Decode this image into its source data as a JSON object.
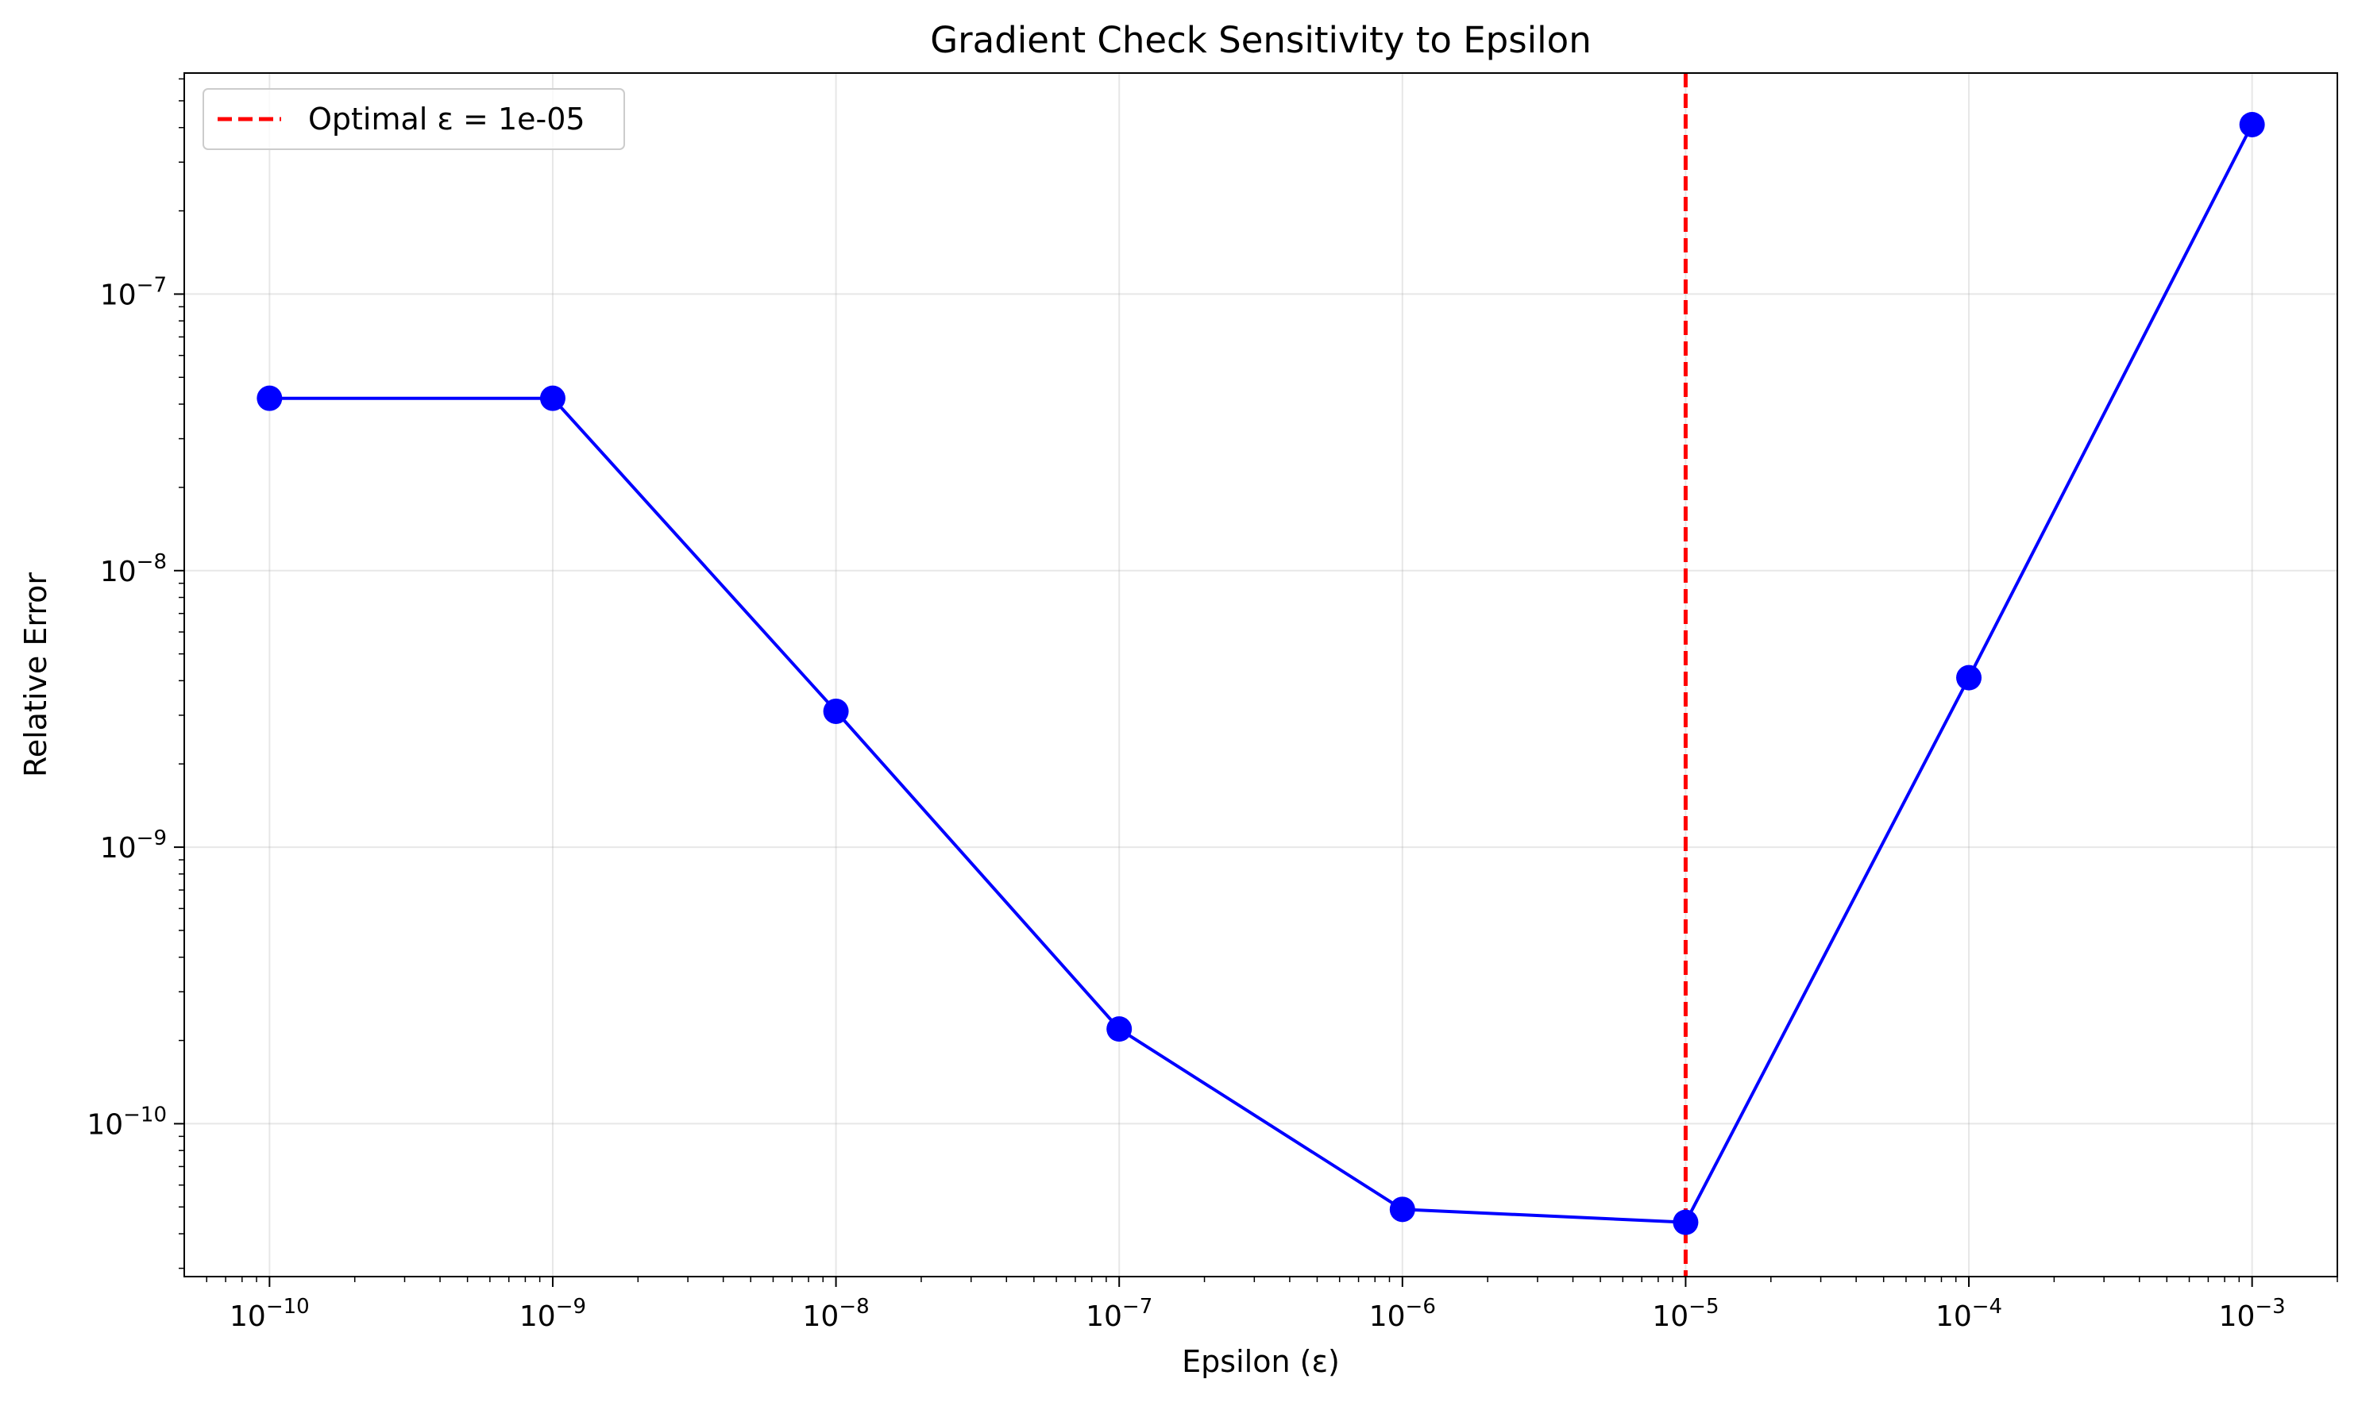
{
  "chart_data": {
    "type": "line",
    "title": "Gradient Check Sensitivity to Epsilon",
    "xlabel": "Epsilon (ε)",
    "ylabel": "Relative Error",
    "xscale": "log",
    "yscale": "log",
    "xlim": [
      5e-11,
      0.002
    ],
    "ylim": [
      2.8e-11,
      6.3e-07
    ],
    "grid": true,
    "legend_position": "top-left",
    "x_ticks": [
      {
        "value": 1e-10,
        "base": "10",
        "exp": "−10"
      },
      {
        "value": 1e-09,
        "base": "10",
        "exp": "−9"
      },
      {
        "value": 1e-08,
        "base": "10",
        "exp": "−8"
      },
      {
        "value": 1e-07,
        "base": "10",
        "exp": "−7"
      },
      {
        "value": 1e-06,
        "base": "10",
        "exp": "−6"
      },
      {
        "value": 1e-05,
        "base": "10",
        "exp": "−5"
      },
      {
        "value": 0.0001,
        "base": "10",
        "exp": "−4"
      },
      {
        "value": 0.001,
        "base": "10",
        "exp": "−3"
      }
    ],
    "y_ticks": [
      {
        "value": 1e-10,
        "base": "10",
        "exp": "−10"
      },
      {
        "value": 1e-09,
        "base": "10",
        "exp": "−9"
      },
      {
        "value": 1e-08,
        "base": "10",
        "exp": "−8"
      },
      {
        "value": 1e-07,
        "base": "10",
        "exp": "−7"
      }
    ],
    "series": [
      {
        "color": "#0000ff",
        "marker": "circle",
        "x": [
          1e-10,
          1e-09,
          1e-08,
          1e-07,
          1e-06,
          1e-05,
          0.0001,
          0.001
        ],
        "y": [
          4.2e-08,
          4.2e-08,
          3.1e-09,
          2.2e-10,
          4.9e-11,
          4.4e-11,
          4.1e-09,
          4.1e-07
        ]
      }
    ],
    "vline": {
      "x": 1e-05,
      "color": "#ff0000",
      "style": "dashed",
      "label": "Optimal ε = 1e-05"
    }
  }
}
